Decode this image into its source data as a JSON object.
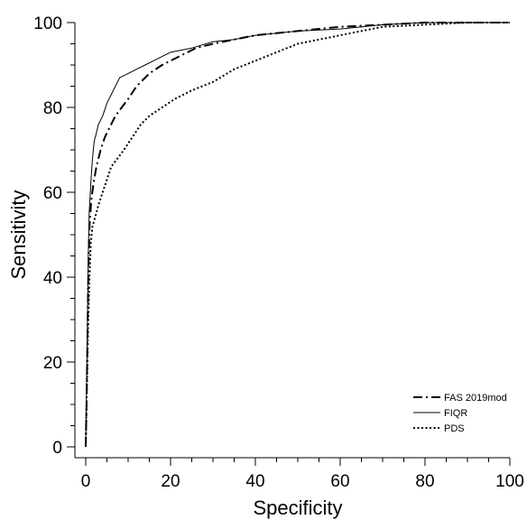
{
  "chart_data": {
    "type": "line",
    "title": "",
    "xlabel": "Specificity",
    "ylabel": "Sensitivity",
    "xlim": [
      0,
      100
    ],
    "ylim": [
      0,
      100
    ],
    "x_ticks": [
      0,
      20,
      40,
      60,
      80,
      100
    ],
    "y_ticks": [
      0,
      20,
      40,
      60,
      80,
      100
    ],
    "grid": false,
    "legend_position": "bottom-right",
    "series": [
      {
        "name": "FAS 2019mod",
        "style": "dash-dot",
        "color": "#000000",
        "points": [
          [
            0,
            0
          ],
          [
            0.2,
            10
          ],
          [
            0.4,
            25
          ],
          [
            0.6,
            40
          ],
          [
            0.9,
            52
          ],
          [
            1.3,
            58
          ],
          [
            1.8,
            62
          ],
          [
            2.5,
            66
          ],
          [
            3.5,
            70
          ],
          [
            4.5,
            73
          ],
          [
            5.5,
            75
          ],
          [
            7,
            78
          ],
          [
            8.5,
            80
          ],
          [
            10,
            82
          ],
          [
            12,
            85
          ],
          [
            15,
            88
          ],
          [
            18,
            90
          ],
          [
            22,
            92
          ],
          [
            26,
            94
          ],
          [
            30,
            95
          ],
          [
            35,
            96
          ],
          [
            40,
            97
          ],
          [
            50,
            98
          ],
          [
            60,
            99
          ],
          [
            70,
            99.5
          ],
          [
            80,
            100
          ],
          [
            90,
            100
          ],
          [
            100,
            100
          ]
        ]
      },
      {
        "name": "FIQR",
        "style": "solid",
        "color": "#000000",
        "points": [
          [
            0,
            0
          ],
          [
            0.2,
            15
          ],
          [
            0.4,
            30
          ],
          [
            0.6,
            45
          ],
          [
            0.8,
            55
          ],
          [
            1.2,
            62
          ],
          [
            1.6,
            68
          ],
          [
            2,
            72
          ],
          [
            2.5,
            74
          ],
          [
            3,
            76
          ],
          [
            4,
            78
          ],
          [
            5,
            81
          ],
          [
            6,
            83
          ],
          [
            7,
            85
          ],
          [
            8,
            87
          ],
          [
            10,
            88
          ],
          [
            12,
            89
          ],
          [
            14,
            90
          ],
          [
            16,
            91
          ],
          [
            18,
            92
          ],
          [
            20,
            93
          ],
          [
            25,
            94
          ],
          [
            30,
            95.5
          ],
          [
            35,
            96
          ],
          [
            40,
            97
          ],
          [
            50,
            98
          ],
          [
            60,
            98.5
          ],
          [
            70,
            99.5
          ],
          [
            80,
            100
          ],
          [
            90,
            100
          ],
          [
            100,
            100
          ]
        ]
      },
      {
        "name": "PDS",
        "style": "dotted",
        "color": "#000000",
        "points": [
          [
            0,
            0
          ],
          [
            0.2,
            10
          ],
          [
            0.4,
            20
          ],
          [
            0.6,
            30
          ],
          [
            0.9,
            40
          ],
          [
            1.2,
            48
          ],
          [
            1.6,
            52
          ],
          [
            2.2,
            54
          ],
          [
            3,
            57
          ],
          [
            4,
            60
          ],
          [
            5,
            63
          ],
          [
            6,
            66
          ],
          [
            7.5,
            68
          ],
          [
            9,
            70
          ],
          [
            11,
            73
          ],
          [
            13,
            76
          ],
          [
            15,
            78
          ],
          [
            18,
            80
          ],
          [
            21,
            82
          ],
          [
            25,
            84
          ],
          [
            30,
            86
          ],
          [
            35,
            89
          ],
          [
            40,
            91
          ],
          [
            45,
            93
          ],
          [
            50,
            95
          ],
          [
            55,
            96
          ],
          [
            60,
            97
          ],
          [
            65,
            98
          ],
          [
            70,
            99
          ],
          [
            80,
            99.5
          ],
          [
            90,
            100
          ],
          [
            100,
            100
          ]
        ]
      }
    ]
  }
}
